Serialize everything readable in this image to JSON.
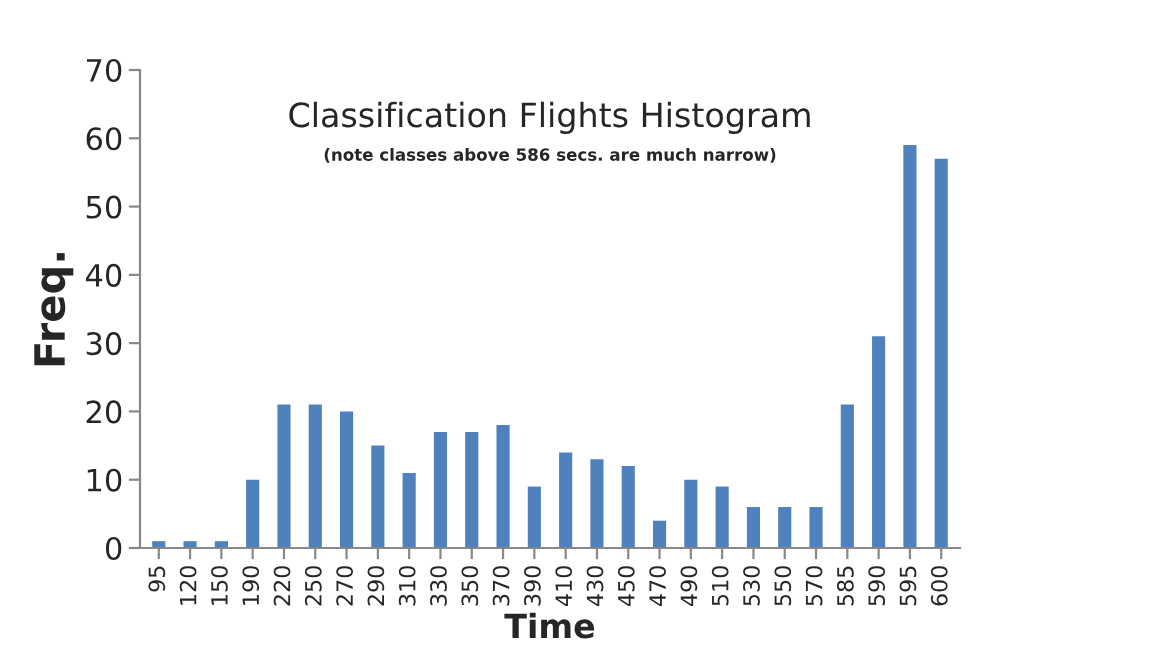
{
  "chart_data": {
    "type": "bar",
    "title": "Classification Flights Histogram",
    "subtitle": "(note classes above 586 secs. are much narrow)",
    "xlabel": "Time",
    "ylabel": "Freq.",
    "categories": [
      "95",
      "120",
      "150",
      "190",
      "220",
      "250",
      "270",
      "290",
      "310",
      "330",
      "350",
      "370",
      "390",
      "410",
      "430",
      "450",
      "470",
      "490",
      "510",
      "530",
      "550",
      "570",
      "585",
      "590",
      "595",
      "600"
    ],
    "values": [
      1,
      1,
      1,
      10,
      21,
      21,
      20,
      15,
      11,
      17,
      17,
      18,
      9,
      14,
      13,
      12,
      4,
      10,
      9,
      6,
      6,
      6,
      21,
      31,
      59,
      57
    ],
    "color": "#4f81bd",
    "ylim": [
      0,
      70
    ],
    "yticks": [
      0,
      10,
      20,
      30,
      40,
      50,
      60,
      70
    ],
    "grid": false
  }
}
